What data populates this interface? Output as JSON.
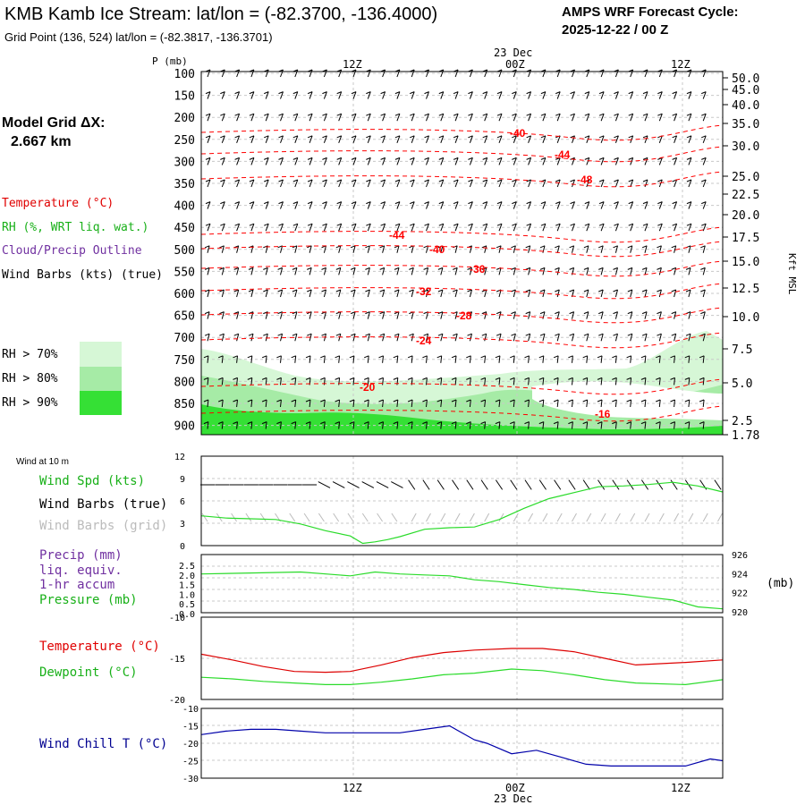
{
  "header": {
    "title": "KMB Kamb Ice Stream:  lat/lon = (-82.3700, -136.4000)",
    "gridpoint": "Grid Point (136, 524) lat/lon = (-82.3817, -136.3701)",
    "cycle_label": "AMPS WRF Forecast Cycle:",
    "cycle_value": "2025-12-22 / 00  Z"
  },
  "left_labels": {
    "model_grid": "Model Grid ΔX:",
    "model_grid_value": "2.667 km",
    "temperature": "Temperature (°C)",
    "rh": "RH (%, WRT liq. wat.)",
    "cloud": "Cloud/Precip Outline",
    "wind_barbs": "Wind Barbs (kts) (true)",
    "rh_legend": [
      "RH > 70%",
      "RH > 80%",
      "RH > 90%"
    ]
  },
  "colors": {
    "temp": "#ff0000",
    "rh": "#2adb2a",
    "cloud": "#7030a0",
    "wind": "#000000",
    "wind_grid": "#aaaaaa",
    "dewpoint": "#00cc00",
    "windchill": "#0000aa",
    "rh70": "#d6f7d6",
    "rh80": "#a6eba6",
    "rh90": "#35e035"
  },
  "time_axis": {
    "top_date": "23 Dec",
    "ticks": [
      "12Z",
      "00Z",
      "12Z"
    ],
    "bottom_ticks": [
      "12Z",
      "00Z",
      "12Z"
    ],
    "bottom_date": "23 Dec"
  },
  "chart_data": [
    {
      "type": "heatmap",
      "name": "cross-section",
      "ylabel": "P (mb)",
      "right_label": "Kft MSL",
      "y_ticks_left": [
        "100",
        "150",
        "200",
        "250",
        "300",
        "350",
        "400",
        "450",
        "500",
        "550",
        "600",
        "650",
        "700",
        "750",
        "800",
        "850",
        "900"
      ],
      "y_ticks_right": [
        "50.0",
        "45.0",
        "40.0",
        "35.0",
        "30.0",
        "25.0",
        "22.5",
        "20.0",
        "17.5",
        "15.0",
        "12.5",
        "10.0",
        "7.5",
        "5.0",
        "2.5",
        "1.78"
      ],
      "temp_contour_labels": [
        "-40",
        "-44",
        "-48",
        "-44",
        "-40",
        "-36",
        "-32",
        "-28",
        "-24",
        "-20",
        "-16"
      ]
    },
    {
      "type": "line",
      "name": "wind",
      "label_top": "Wind at 10 m",
      "series_labels": [
        "Wind Spd (kts)",
        "Wind Barbs (true)",
        "Wind Barbs (grid)"
      ],
      "y_ticks": [
        "12",
        "9",
        "6",
        "3",
        "0"
      ],
      "ylim": [
        0,
        12
      ],
      "x": [
        0,
        2,
        4,
        6,
        8,
        10,
        12,
        13,
        14,
        15,
        16,
        18,
        20,
        22,
        24,
        26,
        28,
        30,
        32,
        34,
        36,
        38,
        40,
        42
      ],
      "values": [
        4,
        3.7,
        3.6,
        3.5,
        2.9,
        2,
        1.3,
        0.3,
        0.5,
        0.8,
        1.2,
        2.2,
        2.4,
        2.5,
        3.5,
        5,
        6.3,
        7.1,
        7.9,
        8,
        8.2,
        8.5,
        8,
        7.2
      ]
    },
    {
      "type": "line",
      "name": "precip-pressure",
      "series_labels": [
        "Precip (mm)",
        "liq. equiv.",
        "1-hr accum",
        "Pressure (mb)"
      ],
      "y_ticks_left": [
        "2.5",
        "2.0",
        "1.5",
        "1.0",
        "0.5",
        "0.0"
      ],
      "y_ticks_right": [
        "926",
        "924",
        "922",
        "920"
      ],
      "right_unit": "(mb)",
      "ylim": [
        920,
        926
      ],
      "x": [
        0,
        4,
        8,
        12,
        14,
        16,
        18,
        20,
        22,
        24,
        26,
        28,
        30,
        32,
        34,
        36,
        38,
        40,
        42
      ],
      "values": [
        924.0,
        924.1,
        924.2,
        923.8,
        924.2,
        924.0,
        923.9,
        923.8,
        923.4,
        923.2,
        922.9,
        922.6,
        922.4,
        922.1,
        921.9,
        921.6,
        921.3,
        920.6,
        920.4
      ]
    },
    {
      "type": "line",
      "name": "temperature",
      "series": [
        {
          "name": "Temperature (°C)",
          "values": [
            -14.5,
            -15.2,
            -16.0,
            -16.6,
            -16.7,
            -16.6,
            -15.8,
            -14.9,
            -14.3,
            -14.0,
            -13.8,
            -13.8,
            -14.2,
            -15.0,
            -15.8,
            -15.5,
            -15.2
          ]
        },
        {
          "name": "Dewpoint (°C)",
          "values": [
            -17.3,
            -17.5,
            -17.8,
            -18.0,
            -18.2,
            -18.2,
            -17.9,
            -17.5,
            -17.0,
            -16.8,
            -16.3,
            -16.5,
            -17.0,
            -17.6,
            -18.0,
            -18.2,
            -17.6
          ]
        }
      ],
      "x": [
        0,
        2.5,
        5,
        7.5,
        10,
        12,
        14.5,
        17,
        19.5,
        22,
        25,
        27.5,
        30,
        32.5,
        35,
        39,
        42
      ],
      "y_ticks": [
        "-10",
        "-15",
        "-20"
      ],
      "ylim": [
        -20,
        -10
      ]
    },
    {
      "type": "line",
      "name": "windchill",
      "series_labels": [
        "Wind Chill T (°C)"
      ],
      "y_ticks": [
        "-10",
        "-15",
        "-20",
        "-25",
        "-30"
      ],
      "ylim": [
        -30,
        -10
      ],
      "x": [
        0,
        2,
        4,
        6,
        8,
        10,
        12,
        14,
        16,
        18,
        20,
        22,
        23,
        25,
        27,
        29,
        31,
        33,
        35,
        37,
        39,
        41,
        42
      ],
      "values": [
        -17.5,
        -16.5,
        -16,
        -16,
        -16.5,
        -17,
        -17,
        -17,
        -17,
        -16,
        -15,
        -19,
        -20,
        -23,
        -22,
        -24,
        -26,
        -26.5,
        -26.5,
        -26.5,
        -26.5,
        -24.5,
        -25
      ]
    }
  ]
}
